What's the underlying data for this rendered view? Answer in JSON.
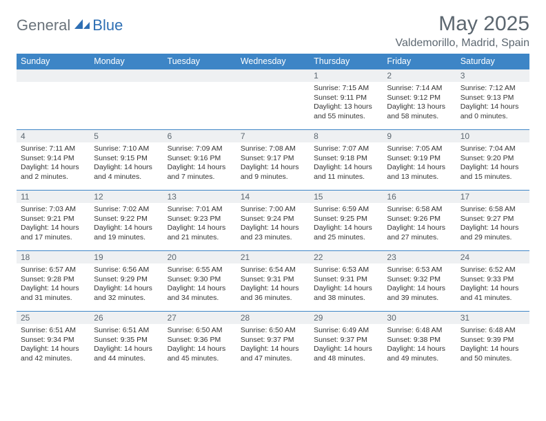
{
  "brand": {
    "part1": "General",
    "part2": "Blue"
  },
  "title": "May 2025",
  "location": "Valdemorillo, Madrid, Spain",
  "colors": {
    "header_bg": "#3d85c6",
    "header_fg": "#ffffff",
    "daynum_bg": "#eef0f2",
    "border": "#3d85c6",
    "title_color": "#5c6770",
    "logo_gray": "#6a737b",
    "logo_blue": "#2e6fb4"
  },
  "weekdays": [
    "Sunday",
    "Monday",
    "Tuesday",
    "Wednesday",
    "Thursday",
    "Friday",
    "Saturday"
  ],
  "weeks": [
    [
      null,
      null,
      null,
      null,
      {
        "n": "1",
        "sr": "Sunrise: 7:15 AM",
        "ss": "Sunset: 9:11 PM",
        "dl": "Daylight: 13 hours and 55 minutes."
      },
      {
        "n": "2",
        "sr": "Sunrise: 7:14 AM",
        "ss": "Sunset: 9:12 PM",
        "dl": "Daylight: 13 hours and 58 minutes."
      },
      {
        "n": "3",
        "sr": "Sunrise: 7:12 AM",
        "ss": "Sunset: 9:13 PM",
        "dl": "Daylight: 14 hours and 0 minutes."
      }
    ],
    [
      {
        "n": "4",
        "sr": "Sunrise: 7:11 AM",
        "ss": "Sunset: 9:14 PM",
        "dl": "Daylight: 14 hours and 2 minutes."
      },
      {
        "n": "5",
        "sr": "Sunrise: 7:10 AM",
        "ss": "Sunset: 9:15 PM",
        "dl": "Daylight: 14 hours and 4 minutes."
      },
      {
        "n": "6",
        "sr": "Sunrise: 7:09 AM",
        "ss": "Sunset: 9:16 PM",
        "dl": "Daylight: 14 hours and 7 minutes."
      },
      {
        "n": "7",
        "sr": "Sunrise: 7:08 AM",
        "ss": "Sunset: 9:17 PM",
        "dl": "Daylight: 14 hours and 9 minutes."
      },
      {
        "n": "8",
        "sr": "Sunrise: 7:07 AM",
        "ss": "Sunset: 9:18 PM",
        "dl": "Daylight: 14 hours and 11 minutes."
      },
      {
        "n": "9",
        "sr": "Sunrise: 7:05 AM",
        "ss": "Sunset: 9:19 PM",
        "dl": "Daylight: 14 hours and 13 minutes."
      },
      {
        "n": "10",
        "sr": "Sunrise: 7:04 AM",
        "ss": "Sunset: 9:20 PM",
        "dl": "Daylight: 14 hours and 15 minutes."
      }
    ],
    [
      {
        "n": "11",
        "sr": "Sunrise: 7:03 AM",
        "ss": "Sunset: 9:21 PM",
        "dl": "Daylight: 14 hours and 17 minutes."
      },
      {
        "n": "12",
        "sr": "Sunrise: 7:02 AM",
        "ss": "Sunset: 9:22 PM",
        "dl": "Daylight: 14 hours and 19 minutes."
      },
      {
        "n": "13",
        "sr": "Sunrise: 7:01 AM",
        "ss": "Sunset: 9:23 PM",
        "dl": "Daylight: 14 hours and 21 minutes."
      },
      {
        "n": "14",
        "sr": "Sunrise: 7:00 AM",
        "ss": "Sunset: 9:24 PM",
        "dl": "Daylight: 14 hours and 23 minutes."
      },
      {
        "n": "15",
        "sr": "Sunrise: 6:59 AM",
        "ss": "Sunset: 9:25 PM",
        "dl": "Daylight: 14 hours and 25 minutes."
      },
      {
        "n": "16",
        "sr": "Sunrise: 6:58 AM",
        "ss": "Sunset: 9:26 PM",
        "dl": "Daylight: 14 hours and 27 minutes."
      },
      {
        "n": "17",
        "sr": "Sunrise: 6:58 AM",
        "ss": "Sunset: 9:27 PM",
        "dl": "Daylight: 14 hours and 29 minutes."
      }
    ],
    [
      {
        "n": "18",
        "sr": "Sunrise: 6:57 AM",
        "ss": "Sunset: 9:28 PM",
        "dl": "Daylight: 14 hours and 31 minutes."
      },
      {
        "n": "19",
        "sr": "Sunrise: 6:56 AM",
        "ss": "Sunset: 9:29 PM",
        "dl": "Daylight: 14 hours and 32 minutes."
      },
      {
        "n": "20",
        "sr": "Sunrise: 6:55 AM",
        "ss": "Sunset: 9:30 PM",
        "dl": "Daylight: 14 hours and 34 minutes."
      },
      {
        "n": "21",
        "sr": "Sunrise: 6:54 AM",
        "ss": "Sunset: 9:31 PM",
        "dl": "Daylight: 14 hours and 36 minutes."
      },
      {
        "n": "22",
        "sr": "Sunrise: 6:53 AM",
        "ss": "Sunset: 9:31 PM",
        "dl": "Daylight: 14 hours and 38 minutes."
      },
      {
        "n": "23",
        "sr": "Sunrise: 6:53 AM",
        "ss": "Sunset: 9:32 PM",
        "dl": "Daylight: 14 hours and 39 minutes."
      },
      {
        "n": "24",
        "sr": "Sunrise: 6:52 AM",
        "ss": "Sunset: 9:33 PM",
        "dl": "Daylight: 14 hours and 41 minutes."
      }
    ],
    [
      {
        "n": "25",
        "sr": "Sunrise: 6:51 AM",
        "ss": "Sunset: 9:34 PM",
        "dl": "Daylight: 14 hours and 42 minutes."
      },
      {
        "n": "26",
        "sr": "Sunrise: 6:51 AM",
        "ss": "Sunset: 9:35 PM",
        "dl": "Daylight: 14 hours and 44 minutes."
      },
      {
        "n": "27",
        "sr": "Sunrise: 6:50 AM",
        "ss": "Sunset: 9:36 PM",
        "dl": "Daylight: 14 hours and 45 minutes."
      },
      {
        "n": "28",
        "sr": "Sunrise: 6:50 AM",
        "ss": "Sunset: 9:37 PM",
        "dl": "Daylight: 14 hours and 47 minutes."
      },
      {
        "n": "29",
        "sr": "Sunrise: 6:49 AM",
        "ss": "Sunset: 9:37 PM",
        "dl": "Daylight: 14 hours and 48 minutes."
      },
      {
        "n": "30",
        "sr": "Sunrise: 6:48 AM",
        "ss": "Sunset: 9:38 PM",
        "dl": "Daylight: 14 hours and 49 minutes."
      },
      {
        "n": "31",
        "sr": "Sunrise: 6:48 AM",
        "ss": "Sunset: 9:39 PM",
        "dl": "Daylight: 14 hours and 50 minutes."
      }
    ]
  ]
}
